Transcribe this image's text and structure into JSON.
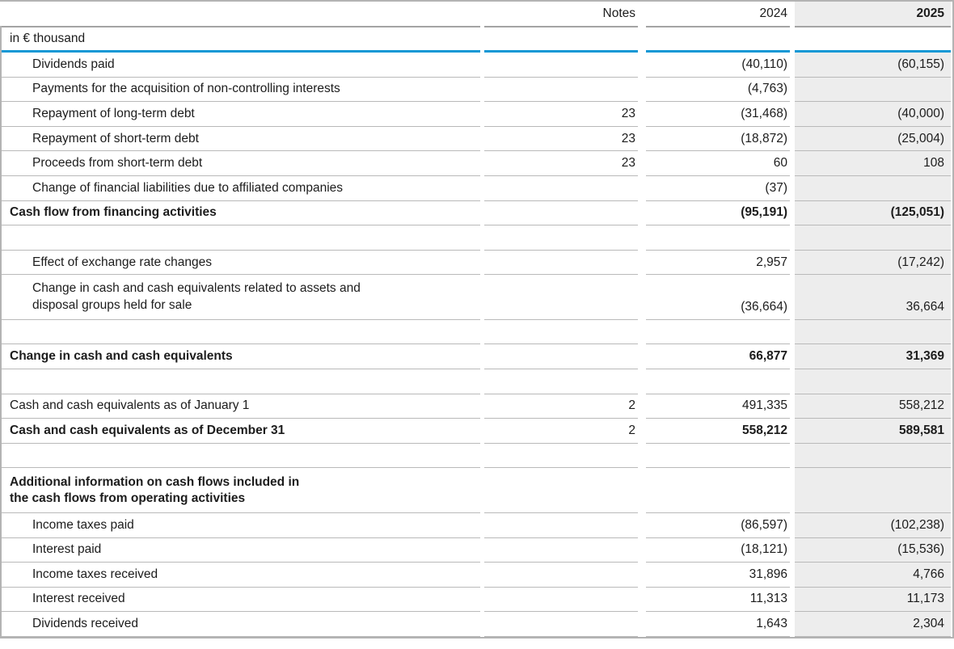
{
  "table": {
    "unit_label": "in € thousand",
    "columns": {
      "notes": "Notes",
      "y2024": "2024",
      "y2025": "2025"
    },
    "rows": [
      {
        "label": "Dividends paid",
        "v2024": "(40,110)",
        "v2025": "(60,155)"
      },
      {
        "label": "Payments for the acquisition of non-controlling interests",
        "v2024": "(4,763)"
      },
      {
        "label": "Repayment of long-term debt",
        "notes": "23",
        "v2024": "(31,468)",
        "v2025": "(40,000)"
      },
      {
        "label": "Repayment of short-term debt",
        "notes": "23",
        "v2024": "(18,872)",
        "v2025": "(25,004)"
      },
      {
        "label": "Proceeds from short-term debt",
        "notes": "23",
        "v2024": "60",
        "v2025": "108"
      },
      {
        "label": "Change of financial liabilities due to affiliated companies",
        "v2024": "(37)"
      },
      {
        "label": "Cash flow from financing activities",
        "v2024": "(95,191)",
        "v2025": "(125,051)"
      },
      {
        "type": "spacer"
      },
      {
        "label": "Effect of exchange rate changes",
        "v2024": "2,957",
        "v2025": "(17,242)"
      },
      {
        "label": "Change in cash and cash equivalents related to assets and\ndisposal groups held for sale",
        "v2024": "(36,664)",
        "v2025": "36,664"
      },
      {
        "type": "spacer"
      },
      {
        "label": "Change in cash and cash equivalents",
        "v2024": "66,877",
        "v2025": "31,369"
      },
      {
        "type": "spacer"
      },
      {
        "label": "Cash and cash equivalents as of January 1",
        "notes": "2",
        "v2024": "491,335",
        "v2025": "558,212"
      },
      {
        "label": "Cash and cash equivalents as of December 31",
        "notes": "2",
        "v2024": "558,212",
        "v2025": "589,581"
      },
      {
        "type": "spacer"
      },
      {
        "label": "Additional information on cash flows included in\nthe cash flows from operating activities"
      },
      {
        "label": "Income taxes paid",
        "v2024": "(86,597)",
        "v2025": "(102,238)"
      },
      {
        "label": "Interest paid",
        "v2024": "(18,121)",
        "v2025": "(15,536)"
      },
      {
        "label": "Income taxes received",
        "v2024": "31,896",
        "v2025": "4,766"
      },
      {
        "label": "Interest received",
        "v2024": "11,313",
        "v2025": "11,173"
      },
      {
        "label": "Dividends received",
        "v2024": "1,643",
        "v2025": "2,304"
      }
    ]
  },
  "colors": {
    "accent_blue_rule": "#1398d5",
    "highlight_column_bg": "#ededed",
    "grid_line": "#b9b9b9",
    "header_rule": "#a4a4a4",
    "outer_border": "#b3b3b3"
  }
}
